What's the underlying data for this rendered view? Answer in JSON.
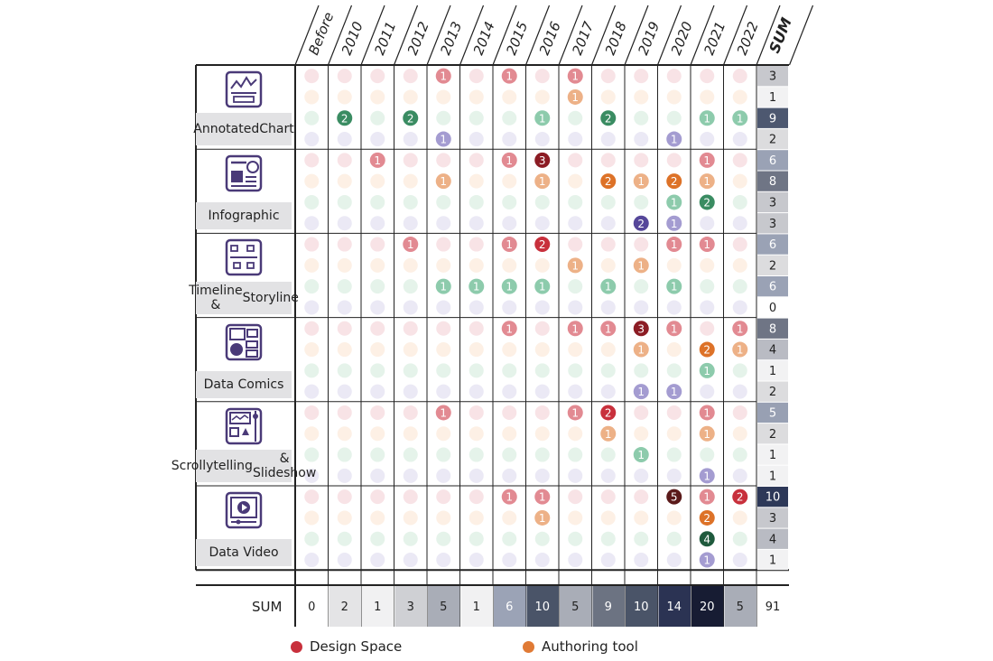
{
  "chart_data": {
    "type": "heatmap",
    "title": "",
    "years": [
      "Before",
      "2010",
      "2011",
      "2012",
      "2013",
      "2014",
      "2015",
      "2016",
      "2017",
      "2018",
      "2019",
      "2020",
      "2021",
      "2022"
    ],
    "sum_header": "SUM",
    "sum_row_label": "SUM",
    "series": [
      {
        "name": "Design Space",
        "color": "#c8303c"
      },
      {
        "name": "Authoring tool",
        "color": "#e07a35"
      },
      {
        "name": "",
        "color": "#3a8c62"
      },
      {
        "name": "",
        "color": "#5a4b9a"
      }
    ],
    "faint_colors": [
      "#f8e3e6",
      "#fdf0e5",
      "#e5f3ea",
      "#ebe9f5"
    ],
    "categories": [
      {
        "name": "Annotated Chart",
        "label_lines": [
          "Annotated",
          "Chart"
        ],
        "icon": "annotated-chart-icon",
        "rows": [
          [
            0,
            0,
            0,
            0,
            1,
            0,
            1,
            0,
            1,
            0,
            0,
            0,
            0,
            0
          ],
          [
            0,
            0,
            0,
            0,
            0,
            0,
            0,
            0,
            1,
            0,
            0,
            0,
            0,
            0
          ],
          [
            0,
            2,
            0,
            2,
            0,
            0,
            0,
            1,
            0,
            2,
            0,
            0,
            1,
            1
          ],
          [
            0,
            0,
            0,
            0,
            1,
            0,
            0,
            0,
            0,
            0,
            0,
            1,
            0,
            0
          ]
        ],
        "row_sums": [
          3,
          1,
          9,
          2
        ]
      },
      {
        "name": "Infographic",
        "label_lines": [
          "Infographic"
        ],
        "icon": "infographic-icon",
        "rows": [
          [
            0,
            0,
            1,
            0,
            0,
            0,
            1,
            3,
            0,
            0,
            0,
            0,
            1,
            0
          ],
          [
            0,
            0,
            0,
            0,
            1,
            0,
            0,
            1,
            0,
            2,
            1,
            2,
            1,
            0
          ],
          [
            0,
            0,
            0,
            0,
            0,
            0,
            0,
            0,
            0,
            0,
            0,
            1,
            2,
            0
          ],
          [
            0,
            0,
            0,
            0,
            0,
            0,
            0,
            0,
            0,
            0,
            2,
            1,
            0,
            0
          ]
        ],
        "row_sums": [
          6,
          8,
          3,
          3
        ]
      },
      {
        "name": "Timeline & Storyline",
        "label_lines": [
          "Timeline  &",
          "Storyline"
        ],
        "icon": "timeline-icon",
        "rows": [
          [
            0,
            0,
            0,
            1,
            0,
            0,
            1,
            2,
            0,
            0,
            0,
            1,
            1,
            0
          ],
          [
            0,
            0,
            0,
            0,
            0,
            0,
            0,
            0,
            1,
            0,
            1,
            0,
            0,
            0
          ],
          [
            0,
            0,
            0,
            0,
            1,
            1,
            1,
            1,
            0,
            1,
            0,
            1,
            0,
            0
          ],
          [
            0,
            0,
            0,
            0,
            0,
            0,
            0,
            0,
            0,
            0,
            0,
            0,
            0,
            0
          ]
        ],
        "row_sums": [
          6,
          2,
          6,
          0
        ]
      },
      {
        "name": "Data Comics",
        "label_lines": [
          "Data Comics"
        ],
        "icon": "data-comics-icon",
        "rows": [
          [
            0,
            0,
            0,
            0,
            0,
            0,
            1,
            0,
            1,
            1,
            3,
            1,
            0,
            1
          ],
          [
            0,
            0,
            0,
            0,
            0,
            0,
            0,
            0,
            0,
            0,
            1,
            0,
            2,
            1
          ],
          [
            0,
            0,
            0,
            0,
            0,
            0,
            0,
            0,
            0,
            0,
            0,
            0,
            1,
            0
          ],
          [
            0,
            0,
            0,
            0,
            0,
            0,
            0,
            0,
            0,
            0,
            1,
            1,
            0,
            0
          ]
        ],
        "row_sums": [
          8,
          4,
          1,
          2
        ]
      },
      {
        "name": "Scrollytelling & Slideshow",
        "label_lines": [
          "Scrollytelling",
          "& Slideshow"
        ],
        "icon": "scrollytelling-icon",
        "rows": [
          [
            0,
            0,
            0,
            0,
            1,
            0,
            0,
            0,
            1,
            2,
            0,
            0,
            1,
            0
          ],
          [
            0,
            0,
            0,
            0,
            0,
            0,
            0,
            0,
            0,
            1,
            0,
            0,
            1,
            0
          ],
          [
            0,
            0,
            0,
            0,
            0,
            0,
            0,
            0,
            0,
            0,
            1,
            0,
            0,
            0
          ],
          [
            0,
            0,
            0,
            0,
            0,
            0,
            0,
            0,
            0,
            0,
            0,
            0,
            1,
            0
          ]
        ],
        "row_sums": [
          5,
          2,
          1,
          1
        ]
      },
      {
        "name": "Data Video",
        "label_lines": [
          "Data Video"
        ],
        "icon": "data-video-icon",
        "rows": [
          [
            0,
            0,
            0,
            0,
            0,
            0,
            1,
            1,
            0,
            0,
            0,
            5,
            1,
            2
          ],
          [
            0,
            0,
            0,
            0,
            0,
            0,
            0,
            1,
            0,
            0,
            0,
            0,
            2,
            0
          ],
          [
            0,
            0,
            0,
            0,
            0,
            0,
            0,
            0,
            0,
            0,
            0,
            0,
            4,
            0
          ],
          [
            0,
            0,
            0,
            0,
            0,
            0,
            0,
            0,
            0,
            0,
            0,
            0,
            1,
            0
          ]
        ],
        "row_sums": [
          10,
          3,
          4,
          1
        ]
      }
    ],
    "column_sums": [
      0,
      2,
      1,
      3,
      5,
      1,
      6,
      10,
      5,
      9,
      10,
      14,
      20,
      5
    ],
    "grand_total": 91,
    "legend": [
      {
        "label": "Design Space",
        "color": "#c8303c"
      },
      {
        "label": "Authoring tool",
        "color": "#e07a35"
      }
    ]
  }
}
